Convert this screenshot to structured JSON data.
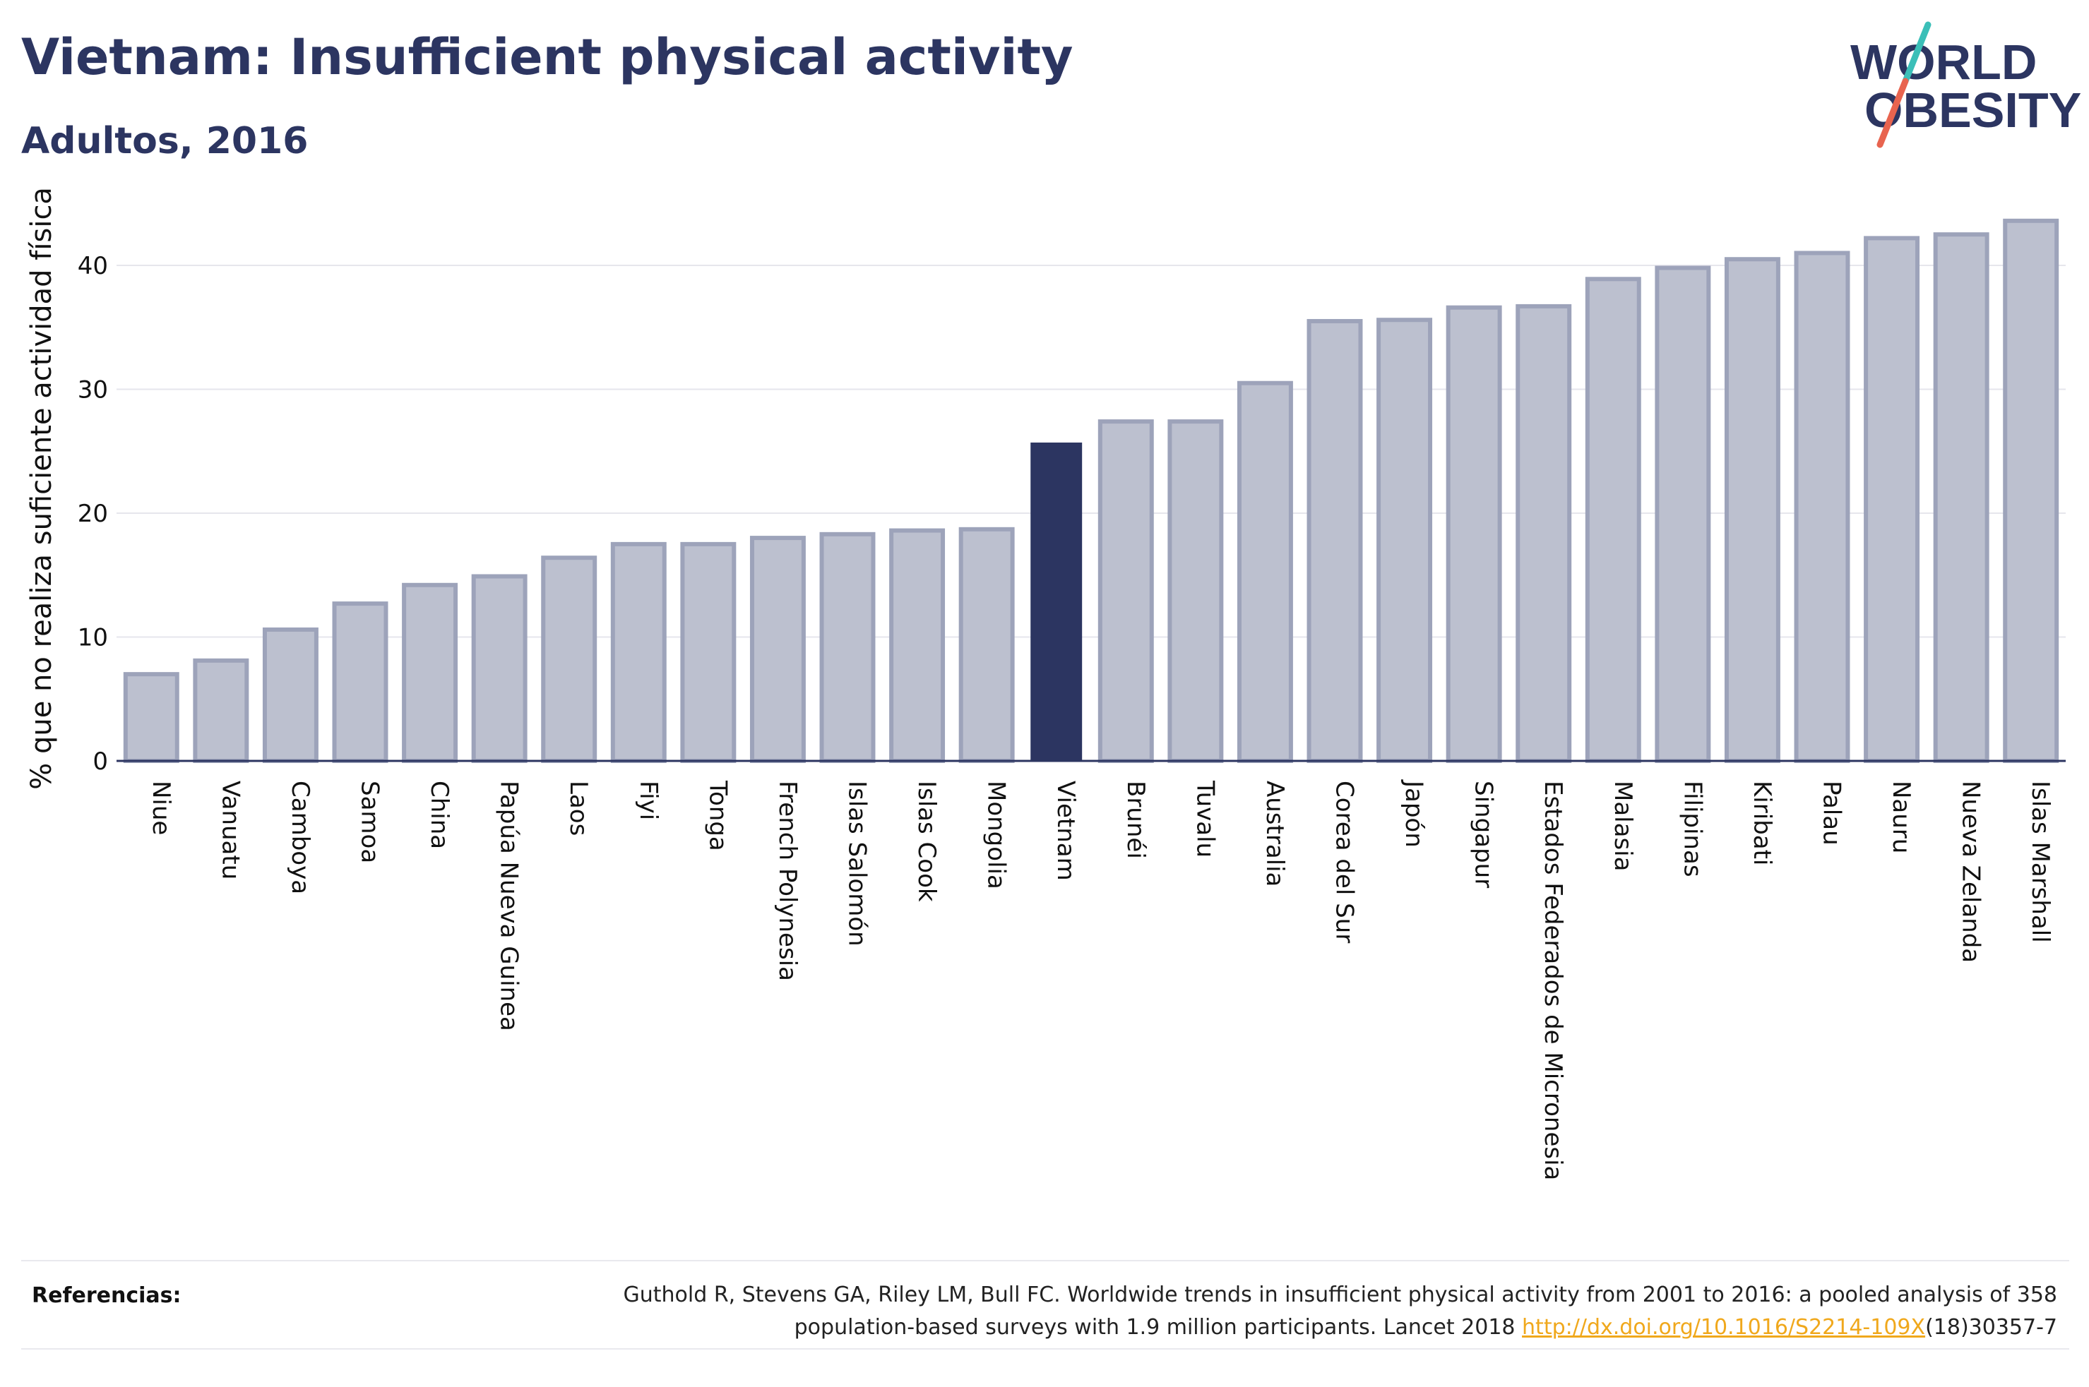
{
  "header": {
    "title": "Vietnam: Insufficient physical activity",
    "subtitle": "Adultos, 2016"
  },
  "logo": {
    "line1": "WORLD",
    "line2": "OBESITY",
    "slash_color_top": "#3bbfb8",
    "slash_color_bottom": "#e8644f",
    "text_color": "#2c3561"
  },
  "colors": {
    "bar": "#bcc0cf",
    "bar_border": "#9da3ba",
    "highlight": "#2c3561",
    "grid": "#e6e6ec",
    "axis": "#2c3561"
  },
  "chart_data": {
    "type": "bar",
    "ylabel": "% que no realiza suficiente actividad física",
    "xlabel": "",
    "ylim": [
      0,
      44
    ],
    "yticks": [
      0,
      10,
      20,
      30,
      40
    ],
    "grid": true,
    "highlight": "Vietnam",
    "categories": [
      "Niue",
      "Vanuatu",
      "Camboya",
      "Samoa",
      "China",
      "Papúa Nueva Guinea",
      "Laos",
      "Fiyi",
      "Tonga",
      "French Polynesia",
      "Islas Salomón",
      "Islas Cook",
      "Mongolia",
      "Vietnam",
      "Brunéi",
      "Tuvalu",
      "Australia",
      "Corea del Sur",
      "Japón",
      "Singapur",
      "Estados Federados de Micronesia",
      "Malasia",
      "Filipinas",
      "Kiribati",
      "Palau",
      "Nauru",
      "Nueva Zelanda",
      "Islas Marshall"
    ],
    "values": [
      7.0,
      8.1,
      10.6,
      12.7,
      14.2,
      14.9,
      16.4,
      17.5,
      17.5,
      18.0,
      18.3,
      18.6,
      18.7,
      25.7,
      27.4,
      27.4,
      30.5,
      35.5,
      35.6,
      36.6,
      36.7,
      38.9,
      39.8,
      40.5,
      41.0,
      42.2,
      42.5,
      43.6
    ]
  },
  "footer": {
    "ref_label": "Referencias:",
    "ref_line1": "Guthold R, Stevens GA, Riley LM, Bull FC. Worldwide trends in insufficient physical activity from 2001 to 2016: a pooled analysis of 358",
    "ref_line2_pre": "population-based surveys with 1.9 million participants. Lancet 2018 ",
    "ref_link": "http://dx.doi.org/10.1016/S2214-109X",
    "ref_line2_post": "(18)30357-7"
  }
}
